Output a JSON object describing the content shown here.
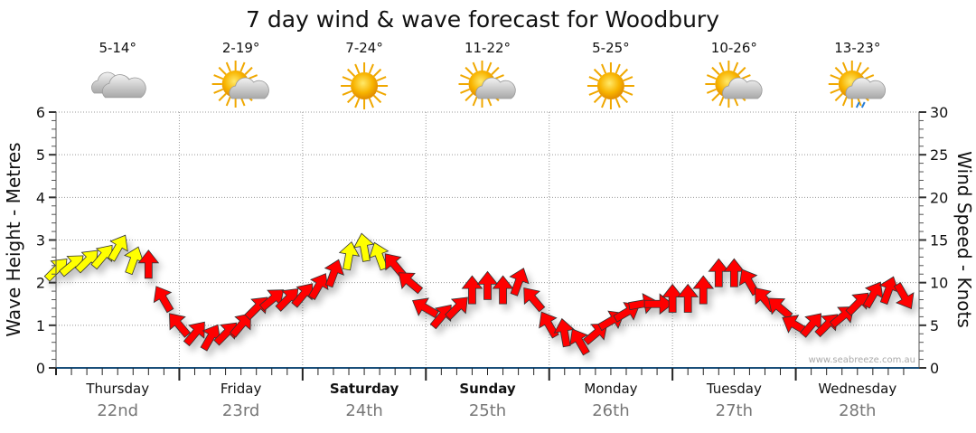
{
  "chart_data": {
    "type": "scatter",
    "title": "7 day wind & wave forecast for Woodbury",
    "ylabel": "Wave Height - Metres",
    "y2label": "Wind Speed - Knots",
    "ylim": [
      0,
      6
    ],
    "y2lim": [
      0,
      30
    ],
    "yticks": [
      "0",
      "1",
      "2",
      "3",
      "4",
      "5",
      "6"
    ],
    "y2ticks": [
      "0",
      "5",
      "10",
      "15",
      "20",
      "25",
      "30"
    ],
    "watermark": "www.seabreeze.com.au",
    "days": [
      {
        "name": "Thursday",
        "date": "22nd",
        "temp": "5-14°",
        "icon": "cloudy",
        "bold": false
      },
      {
        "name": "Friday",
        "date": "23rd",
        "temp": "2-19°",
        "icon": "partly-cloudy",
        "bold": false
      },
      {
        "name": "Saturday",
        "date": "24th",
        "temp": "7-24°",
        "icon": "sunny",
        "bold": true
      },
      {
        "name": "Sunday",
        "date": "25th",
        "temp": "11-22°",
        "icon": "partly-cloudy",
        "bold": true
      },
      {
        "name": "Monday",
        "date": "26th",
        "temp": "5-25°",
        "icon": "sunny",
        "bold": false
      },
      {
        "name": "Tuesday",
        "date": "27th",
        "temp": "10-26°",
        "icon": "partly-cloudy",
        "bold": false
      },
      {
        "name": "Wednesday",
        "date": "28th",
        "temp": "13-23°",
        "icon": "showers",
        "bold": false
      }
    ],
    "wind_interval_hours": 3,
    "wind_speed_knots": [
      11.5,
      12,
      12.5,
      13,
      14,
      12.5,
      12,
      8,
      5,
      4,
      3.5,
      4,
      5,
      7,
      8,
      8,
      8.5,
      9.5,
      11,
      13,
      14,
      13,
      12,
      10,
      7,
      6,
      7,
      9,
      9.5,
      9,
      10,
      8,
      5,
      4,
      3,
      4,
      5.5,
      6.5,
      7.5,
      7.5,
      8,
      8,
      9,
      11,
      11,
      10,
      8,
      7,
      5,
      5,
      5,
      6,
      7.5,
      8.5,
      9,
      8.5
    ],
    "wind_direction_deg": [
      45,
      50,
      45,
      40,
      30,
      20,
      0,
      330,
      320,
      40,
      30,
      45,
      40,
      45,
      50,
      45,
      40,
      30,
      20,
      10,
      350,
      340,
      320,
      310,
      300,
      40,
      45,
      0,
      0,
      0,
      20,
      320,
      330,
      350,
      330,
      50,
      60,
      60,
      80,
      90,
      0,
      0,
      0,
      0,
      0,
      330,
      320,
      310,
      300,
      40,
      45,
      50,
      45,
      30,
      20,
      150
    ],
    "wind_color": [
      "#ffff00",
      "#ffff00",
      "#ffff00",
      "#ffff00",
      "#ffff00",
      "#ffff00",
      "#ff0000",
      "#ff0000",
      "#ff0000",
      "#ff0000",
      "#ff0000",
      "#ff0000",
      "#ff0000",
      "#ff0000",
      "#ff0000",
      "#ff0000",
      "#ff0000",
      "#ff0000",
      "#ff0000",
      "#ffff00",
      "#ffff00",
      "#ffff00",
      "#ff0000",
      "#ff0000",
      "#ff0000",
      "#ff0000",
      "#ff0000",
      "#ff0000",
      "#ff0000",
      "#ff0000",
      "#ff0000",
      "#ff0000",
      "#ff0000",
      "#ff0000",
      "#ff0000",
      "#ff0000",
      "#ff0000",
      "#ff0000",
      "#ff0000",
      "#ff0000",
      "#ff0000",
      "#ff0000",
      "#ff0000",
      "#ff0000",
      "#ff0000",
      "#ff0000",
      "#ff0000",
      "#ff0000",
      "#ff0000",
      "#ff0000",
      "#ff0000",
      "#ff0000",
      "#ff0000",
      "#ff0000",
      "#ff0000",
      "#ff0000"
    ]
  }
}
